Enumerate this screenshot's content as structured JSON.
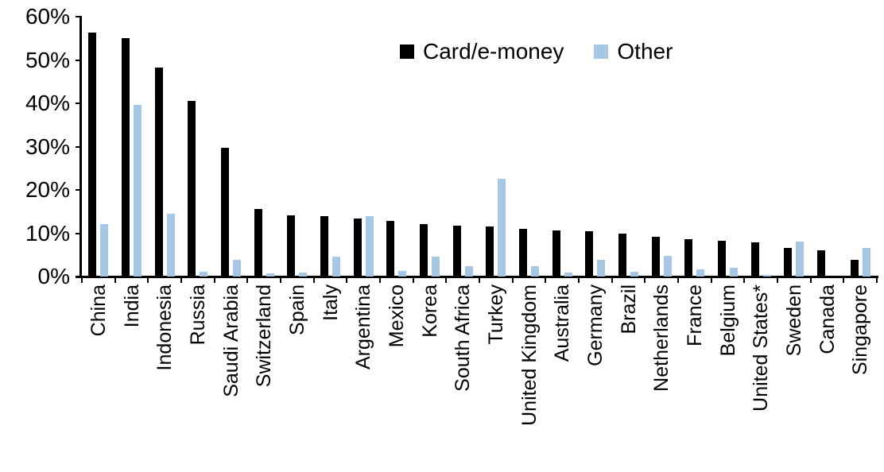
{
  "chart_data": {
    "type": "bar",
    "title": "",
    "xlabel": "",
    "ylabel": "",
    "ylim": [
      0,
      60
    ],
    "ytick_step": 10,
    "ytick_labels": [
      "0%",
      "10%",
      "20%",
      "30%",
      "40%",
      "50%",
      "60%"
    ],
    "grid": false,
    "legend_position": "top-center",
    "categories": [
      "China",
      "India",
      "Indonesia",
      "Russia",
      "Saudi Arabia",
      "Switzerland",
      "Spain",
      "Italy",
      "Argentina",
      "Mexico",
      "Korea",
      "South Africa",
      "Turkey",
      "United Kingdom",
      "Australia",
      "Germany",
      "Brazil",
      "Netherlands",
      "France",
      "Belgium",
      "United States*",
      "Sweden",
      "Canada",
      "Singapore"
    ],
    "series": [
      {
        "name": "Card/e-money",
        "color": "#000000",
        "values": [
          56.3,
          55.0,
          48.2,
          40.5,
          29.8,
          15.6,
          14.1,
          14.0,
          13.4,
          12.8,
          12.2,
          11.7,
          11.6,
          11.0,
          10.7,
          10.5,
          9.9,
          9.2,
          8.7,
          8.2,
          7.8,
          6.6,
          6.0,
          3.8
        ]
      },
      {
        "name": "Other",
        "color": "#A7C7E7",
        "values": [
          12.2,
          39.6,
          14.5,
          1.1,
          3.8,
          0.7,
          1.0,
          4.6,
          13.9,
          1.3,
          4.5,
          2.3,
          22.5,
          2.3,
          0.9,
          3.9,
          1.1,
          4.8,
          1.6,
          2.1,
          0.3,
          8.1,
          0.0,
          6.6
        ]
      }
    ]
  }
}
